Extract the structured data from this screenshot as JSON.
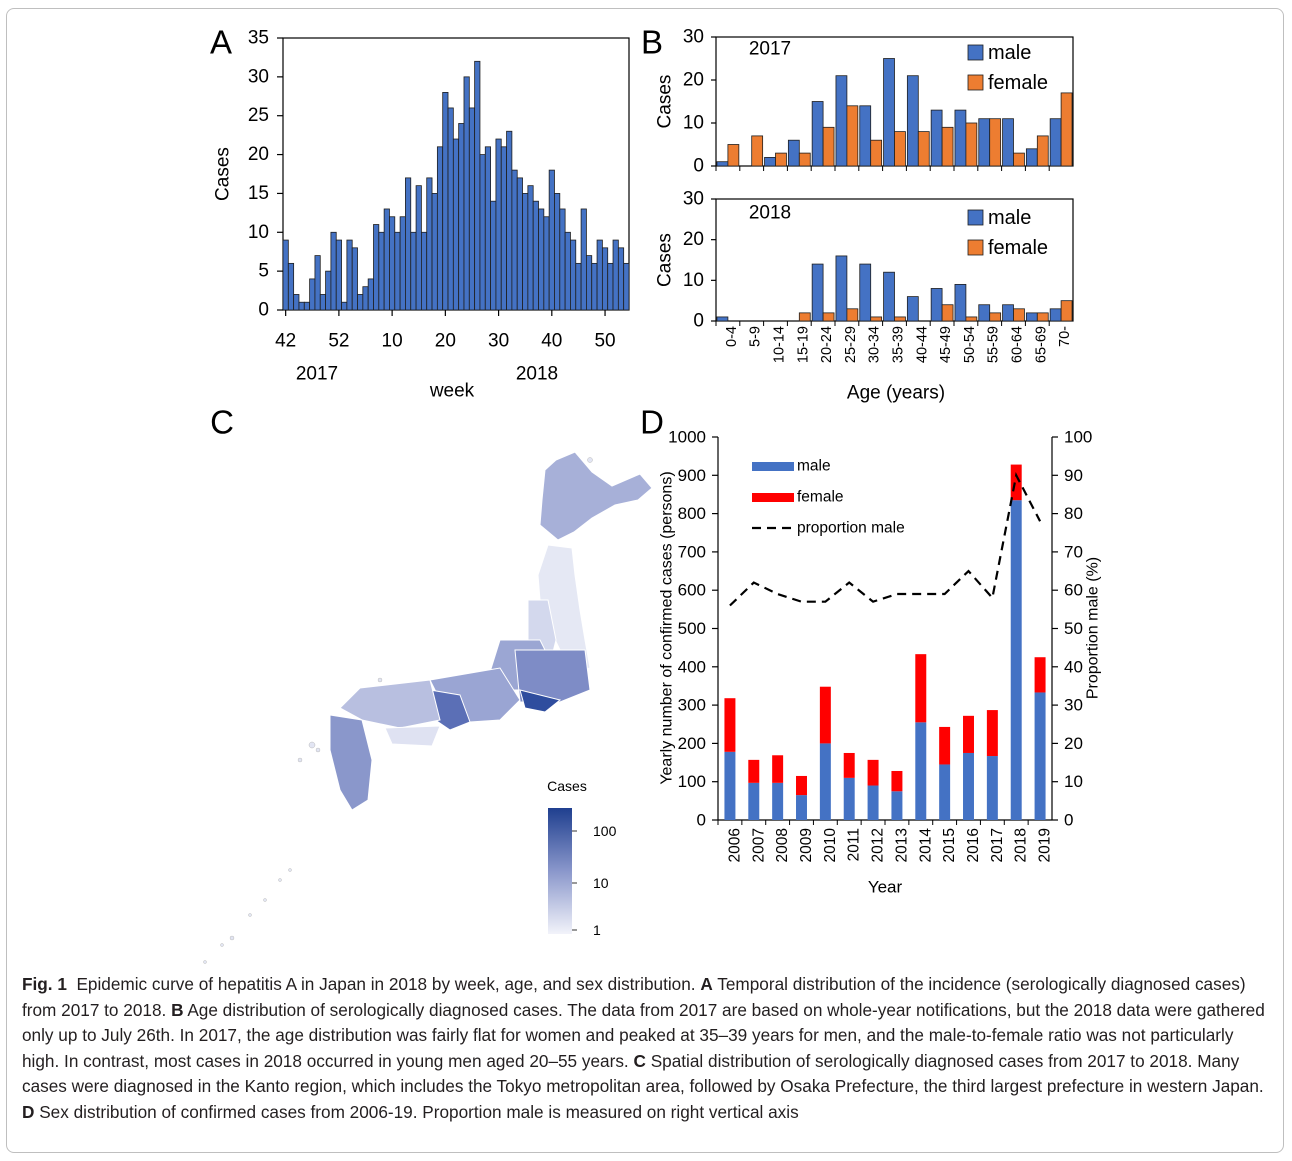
{
  "colors": {
    "blue": "#4472c4",
    "orange": "#ed7d31",
    "red": "#ff0000",
    "dark": "#000000",
    "barA": "#4472c4"
  },
  "panels": {
    "a": "A",
    "b": "B",
    "c": "C",
    "d": "D"
  },
  "chart_data": [
    {
      "panel": "A",
      "type": "bar",
      "ylabel": "Cases",
      "xlabel": "week",
      "ylim": [
        0,
        35
      ],
      "yticks": [
        0,
        5,
        10,
        15,
        20,
        25,
        30,
        35
      ],
      "xtick_labels": [
        "42",
        "52",
        "10",
        "20",
        "30",
        "40",
        "50"
      ],
      "xtick_weeks": [
        42,
        52,
        62,
        72,
        82,
        92,
        102
      ],
      "year_labels": [
        "2017",
        "2018"
      ],
      "start_week": 42,
      "values": [
        9,
        6,
        2,
        1,
        1,
        4,
        7,
        2,
        5,
        10,
        9,
        1,
        9,
        8,
        2,
        3,
        4,
        11,
        10,
        13,
        12,
        10,
        12,
        17,
        10,
        16,
        10,
        17,
        15,
        21,
        28,
        26,
        22,
        24,
        30,
        26,
        32,
        20,
        21,
        14,
        22,
        21,
        23,
        18,
        17,
        15,
        16,
        14,
        13,
        12,
        18,
        15,
        13,
        10,
        9,
        6,
        13,
        7,
        6,
        9,
        8,
        6,
        9,
        8,
        6
      ]
    },
    {
      "panel": "B",
      "type": "bar",
      "title": "2017",
      "ylabel": "Cases",
      "ylim": [
        0,
        30
      ],
      "yticks": [
        0,
        10,
        20,
        30
      ],
      "categories": [
        "0-4",
        "5-9",
        "10-14",
        "15-19",
        "20-24",
        "25-29",
        "30-34",
        "35-39",
        "40-44",
        "45-49",
        "50-54",
        "55-59",
        "60-64",
        "65-69",
        "70-"
      ],
      "series": [
        {
          "name": "male",
          "values": [
            1,
            0,
            2,
            6,
            15,
            21,
            14,
            25,
            21,
            13,
            13,
            11,
            11,
            4,
            11
          ]
        },
        {
          "name": "female",
          "values": [
            5,
            7,
            3,
            3,
            9,
            14,
            6,
            8,
            8,
            9,
            10,
            11,
            3,
            7,
            17
          ]
        }
      ]
    },
    {
      "panel": "B",
      "type": "bar",
      "title": "2018",
      "ylabel": "Cases",
      "xlabel": "Age (years)",
      "ylim": [
        0,
        30
      ],
      "yticks": [
        0,
        10,
        20,
        30
      ],
      "categories": [
        "0-4",
        "5-9",
        "10-14",
        "15-19",
        "20-24",
        "25-29",
        "30-34",
        "35-39",
        "40-44",
        "45-49",
        "50-54",
        "55-59",
        "60-64",
        "65-69",
        "70-"
      ],
      "series": [
        {
          "name": "male",
          "values": [
            1,
            0,
            0,
            0,
            14,
            16,
            14,
            12,
            6,
            8,
            9,
            4,
            4,
            2,
            3
          ]
        },
        {
          "name": "female",
          "values": [
            0,
            0,
            0,
            2,
            2,
            3,
            1,
            1,
            0,
            4,
            1,
            2,
            3,
            2,
            5
          ]
        }
      ]
    },
    {
      "panel": "C",
      "type": "heatmap",
      "legend_title": "Cases",
      "scale_labels": [
        "100",
        "10",
        "1"
      ]
    },
    {
      "panel": "D",
      "type": "bar",
      "xlabel": "Year",
      "ylabel": "Yearly number of confirmed cases (persons)",
      "y2label": "Proportion male (%)",
      "ylim": [
        0,
        1000
      ],
      "yticks": [
        0,
        100,
        200,
        300,
        400,
        500,
        600,
        700,
        800,
        900,
        1000
      ],
      "y2lim": [
        0,
        100
      ],
      "y2ticks": [
        0,
        10,
        20,
        30,
        40,
        50,
        60,
        70,
        80,
        90,
        100
      ],
      "categories": [
        "2006",
        "2007",
        "2008",
        "2009",
        "2010",
        "2011",
        "2012",
        "2013",
        "2014",
        "2015",
        "2016",
        "2017",
        "2018",
        "2019"
      ],
      "series": [
        {
          "name": "male",
          "values": [
            178,
            97,
            97,
            65,
            200,
            110,
            90,
            75,
            255,
            145,
            175,
            167,
            835,
            333
          ]
        },
        {
          "name": "female",
          "values": [
            140,
            60,
            72,
            50,
            148,
            65,
            67,
            53,
            178,
            98,
            97,
            120,
            93,
            92
          ]
        },
        {
          "name": "proportion male",
          "values": [
            56,
            62,
            59,
            57,
            57,
            62,
            57,
            59,
            59,
            59,
            65,
            58,
            90,
            78
          ]
        }
      ]
    }
  ],
  "caption": {
    "fig": "Fig. 1",
    "intro": "Epidemic curve of hepatitis A in Japan in 2018 by week, age, and sex distribution.",
    "a_label": "A",
    "a_text": "Temporal distribution of the incidence (serologically diagnosed cases) from 2017 to 2018.",
    "b_label": "B",
    "b_text": "Age distribution of serologically diagnosed cases. The data from 2017 are based on whole-year notifications, but the 2018 data were gathered only up to July 26th. In 2017, the age distribution was fairly flat for women and peaked at 35–39 years for men, and the male-to-female ratio was not particularly high. In contrast, most cases in 2018 occurred in young men aged 20–55 years.",
    "c_label": "C",
    "c_text": "Spatial distribution of serologically diagnosed cases from 2017 to 2018. Many cases were diagnosed in the Kanto region, which includes the Tokyo metropolitan area, followed by Osaka Prefecture, the third largest prefecture in western Japan.",
    "d_label": "D",
    "d_text": "Sex distribution of confirmed cases from 2006-19. Proportion male is measured on right vertical axis"
  }
}
